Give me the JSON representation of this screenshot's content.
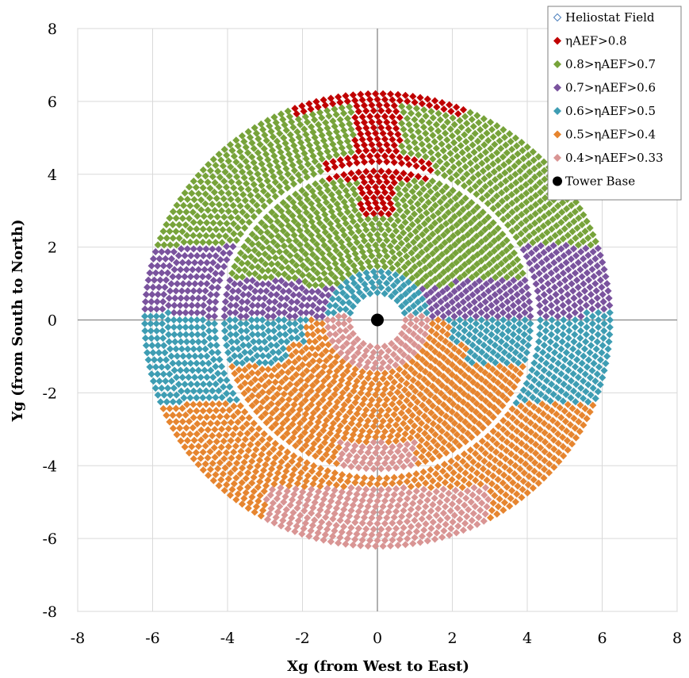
{
  "chart_data": {
    "type": "scatter",
    "title": "",
    "xlabel": "Xg (from West to East)",
    "ylabel": "Yg (from South to North)",
    "xlim": [
      -8,
      8
    ],
    "ylim": [
      -8,
      8
    ],
    "x_ticks": [
      "-8",
      "-6",
      "-4",
      "-2",
      "0",
      "2",
      "4",
      "6",
      "8"
    ],
    "y_ticks": [
      "8",
      "6",
      "4",
      "2",
      "0",
      "-2",
      "-4",
      "-6",
      "-8"
    ],
    "grid": true,
    "legend_position": "top-right",
    "field": {
      "inner_zone_radius": [
        0.75,
        4.2
      ],
      "outer_zone_radius": [
        4.35,
        6.3
      ]
    },
    "series": [
      {
        "name": "Heliostat Field",
        "marker": "hollow-diamond",
        "color": "#4f81bd"
      },
      {
        "name": "ηAEF>0.8",
        "marker": "diamond",
        "color": "#c00000"
      },
      {
        "name": "0.8>ηAEF>0.7",
        "marker": "diamond",
        "color": "#77a33a"
      },
      {
        "name": "0.7>ηAEF>0.6",
        "marker": "diamond",
        "color": "#7a539e"
      },
      {
        "name": "0.6>ηAEF>0.5",
        "marker": "diamond",
        "color": "#3e9db3"
      },
      {
        "name": "0.5>ηAEF>0.4",
        "marker": "diamond",
        "color": "#e6852f"
      },
      {
        "name": "0.4>ηAEF>0.33",
        "marker": "diamond",
        "color": "#d99594"
      },
      {
        "name": "Tower Base",
        "marker": "circle",
        "color": "#000000",
        "points": [
          [
            0,
            0
          ]
        ]
      }
    ]
  }
}
